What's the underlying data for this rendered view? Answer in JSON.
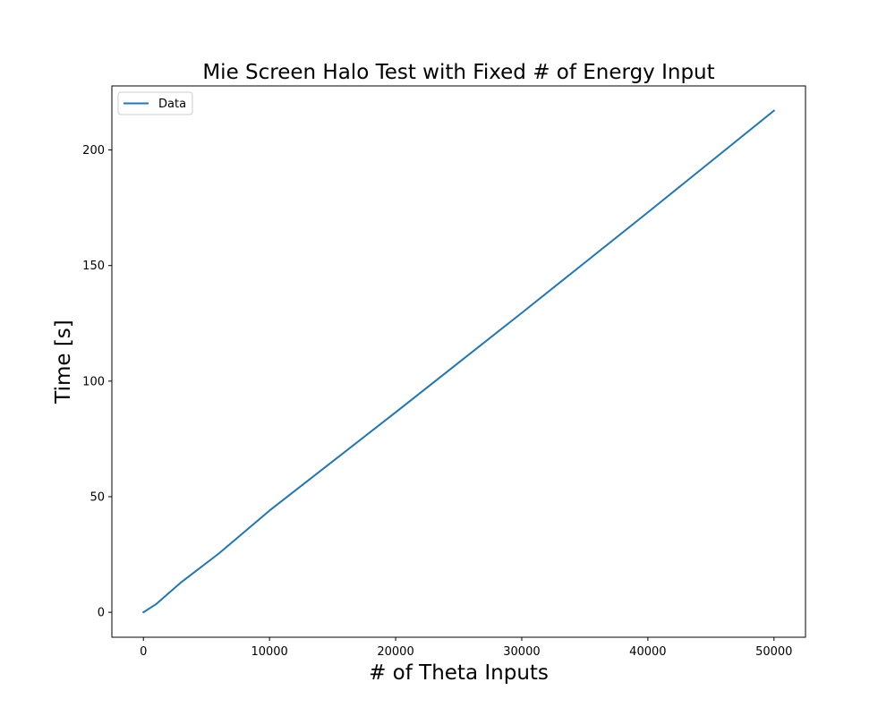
{
  "chart_data": {
    "type": "line",
    "title": "Mie Screen Halo Test with Fixed # of Energy Input",
    "xlabel": "# of Theta Inputs",
    "ylabel": "Time [s]",
    "xlim": [
      -2500,
      52500
    ],
    "ylim": [
      -10.8,
      227.7
    ],
    "x_ticks": [
      0,
      10000,
      20000,
      30000,
      40000,
      50000
    ],
    "y_ticks": [
      0,
      50,
      100,
      150,
      200
    ],
    "x_tick_labels": [
      "0",
      "10000",
      "20000",
      "30000",
      "40000",
      "50000"
    ],
    "y_tick_labels": [
      "0",
      "50",
      "100",
      "150",
      "200"
    ],
    "legend_position": "top-left",
    "grid": false,
    "series": [
      {
        "name": "Data",
        "color": "#1f77b4",
        "x": [
          0,
          1000,
          3000,
          6000,
          10000,
          20000,
          30000,
          40000,
          50000
        ],
        "y": [
          0,
          3.5,
          13,
          25.5,
          44,
          86.5,
          129.5,
          173,
          217
        ]
      }
    ]
  }
}
